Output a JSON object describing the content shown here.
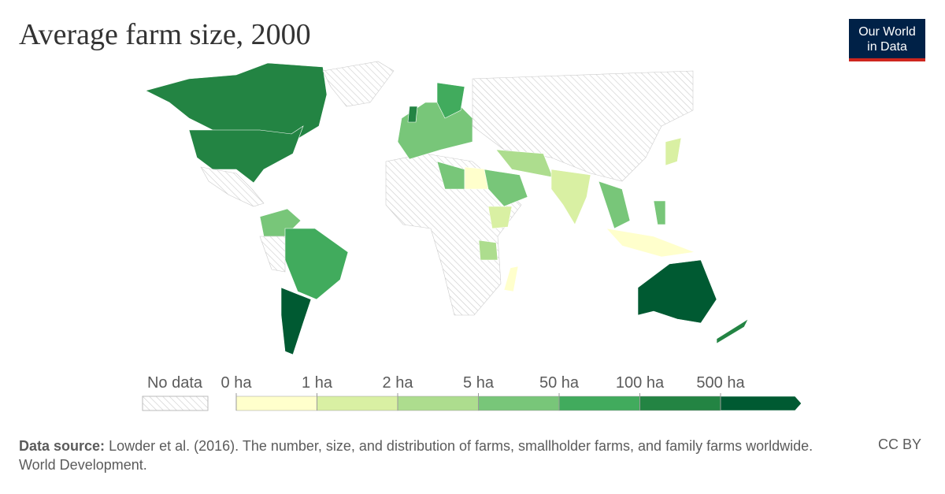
{
  "header": {
    "title": "Average farm size, 2000",
    "logo": [
      "Our World",
      "in Data"
    ]
  },
  "legend": {
    "no_data": "No data",
    "bins": [
      {
        "label": "0 ha",
        "color": "#ffffcc"
      },
      {
        "label": "1 ha",
        "color": "#d9f0a3"
      },
      {
        "label": "2 ha",
        "color": "#addd8e"
      },
      {
        "label": "5 ha",
        "color": "#78c679"
      },
      {
        "label": "50 ha",
        "color": "#41ab5d"
      },
      {
        "label": "100 ha",
        "color": "#238443"
      },
      {
        "label": "500 ha",
        "color": "#005a32"
      }
    ]
  },
  "footer": {
    "source_label": "Data source:",
    "source": "Lowder et al. (2016). The number, size, and distribution of farms, smallholder farms, and family farms worldwide. World Development.",
    "license": "CC BY"
  }
}
